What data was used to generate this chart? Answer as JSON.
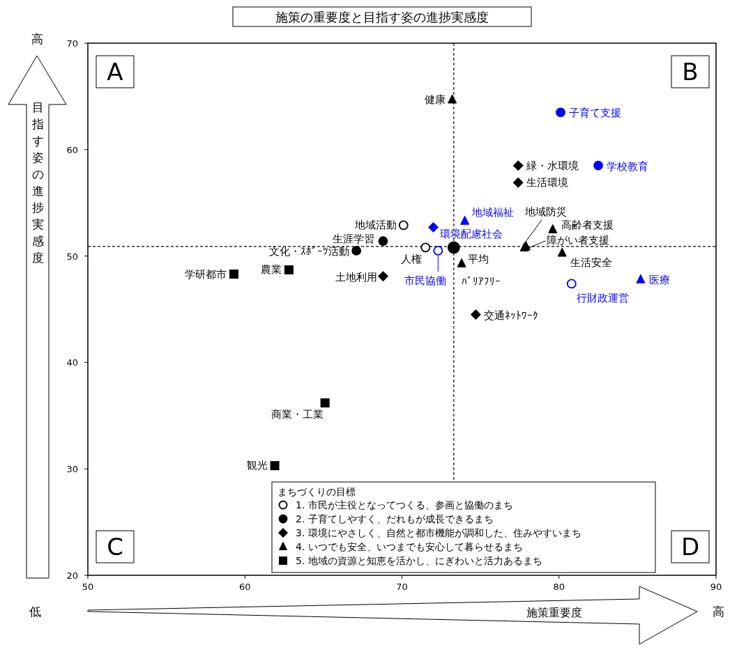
{
  "chart_data": {
    "type": "scatter",
    "title": "施策の重要度と目指す姿の進捗実感度",
    "xlabel": "施策重要度",
    "ylabel": "目指す姿の進捗実感度",
    "legend_title": "まちづくりの目標",
    "legend": "bottom",
    "grid": false,
    "xlim": [
      50,
      90
    ],
    "xticks": [
      50,
      60,
      70,
      80,
      90
    ],
    "ylim": [
      20,
      70
    ],
    "yticks": [
      20,
      30,
      40,
      50,
      60,
      70
    ],
    "series": [
      {
        "name": "1. 市民が主役となってつくる、参画と協働のまち",
        "marker": "circle",
        "color": "#000000",
        "x": [
          70.1,
          71.5,
          72.3,
          80.8
        ],
        "values": [
          52.9,
          50.8,
          50.5,
          47.4
        ],
        "colors": [
          "#000000",
          "#000000",
          "#0000ff",
          "#0000ff"
        ],
        "value_labels": [
          "地域活動",
          "人権",
          "市民協働",
          "行財政運営"
        ]
      },
      {
        "name": "2. 子育てしやすく、だれもが成長できるまち",
        "marker": "circle",
        "color": "#000000",
        "x": [
          80.1,
          82.5,
          68.8,
          67.1
        ],
        "values": [
          63.5,
          58.5,
          51.4,
          50.5
        ],
        "colors": [
          "#0000ff",
          "#0000ff",
          "#000000",
          "#000000"
        ],
        "value_labels": [
          "子育て支援",
          "学校教育",
          "生涯学習",
          "文化・ｽﾎﾟｰﾂ活動"
        ]
      },
      {
        "name": "3. 環境にやさしく、自然と都市機能が調和した、住みやすいまち",
        "marker": "diamond",
        "color": "#000000",
        "x": [
          77.4,
          77.4,
          72.0,
          68.8,
          74.7
        ],
        "values": [
          58.5,
          56.9,
          52.7,
          48.1,
          44.5
        ],
        "colors": [
          "#000000",
          "#000000",
          "#0000ff",
          "#000000",
          "#000000"
        ],
        "value_labels": [
          "緑・水環境",
          "生活環境",
          "環境配慮社会",
          "土地利用",
          "交通ﾈｯﾄﾜｰｸ"
        ]
      },
      {
        "name": "4. いつでも安全、いつまでも安心して暮らせるまち",
        "marker": "triangle",
        "color": "#000000",
        "x": [
          73.2,
          74.0,
          79.6,
          77.8,
          77.9,
          80.2,
          73.8,
          85.2
        ],
        "values": [
          64.7,
          53.3,
          52.5,
          50.8,
          50.9,
          50.3,
          49.3,
          47.8
        ],
        "colors": [
          "#000000",
          "#0000ff",
          "#000000",
          "#000000",
          "#000000",
          "#000000",
          "#000000",
          "#0000ff"
        ],
        "value_labels": [
          "健康",
          "地域福祉",
          "高齢者支援",
          "地域防災",
          "障がい者支援",
          "生活安全",
          "ﾊﾞﾘｱﾌﾘｰ",
          "医療"
        ]
      },
      {
        "name": "5. 地域の資源と知恵を活かし、にぎわいと活力あるまち",
        "marker": "square",
        "color": "#000000",
        "x": [
          59.3,
          62.8,
          65.1,
          61.9
        ],
        "values": [
          48.3,
          48.7,
          36.2,
          30.3
        ],
        "colors": [
          "#000000",
          "#000000",
          "#000000",
          "#000000"
        ],
        "value_labels": [
          "学研都市",
          "農業",
          "商業・工業",
          "観光"
        ]
      },
      {
        "marker": "circle",
        "color": "#000000",
        "x": [
          73.3
        ],
        "values": [
          50.8
        ],
        "value_labels": [
          "平均"
        ]
      }
    ],
    "ref_lines": [
      {
        "axis": "x",
        "value": 73.3,
        "line_style": "dashed",
        "color": "#000000"
      },
      {
        "axis": "y",
        "value": 50.9,
        "line_style": "dashed",
        "color": "#000000"
      }
    ],
    "annotations": [
      "A",
      "B",
      "C",
      "D",
      "高",
      "低",
      "高"
    ]
  }
}
